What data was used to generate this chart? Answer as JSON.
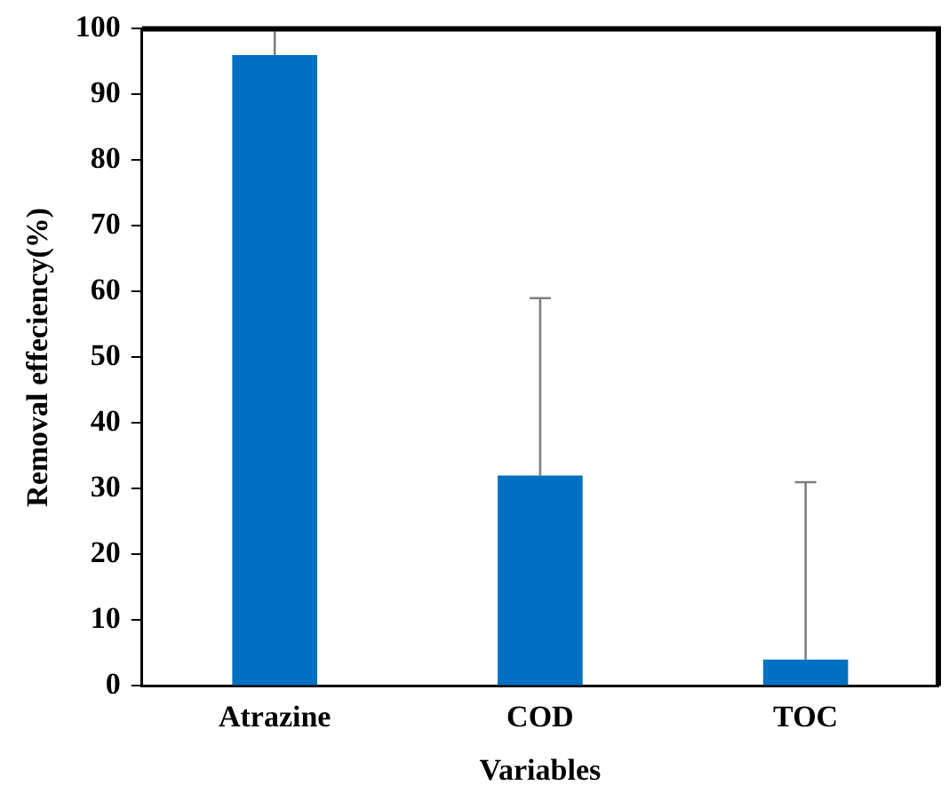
{
  "chart_data": {
    "type": "bar",
    "xlabel": "Variables",
    "ylabel": "Removal effeciency(%)",
    "categories": [
      "Atrazine",
      "COD",
      "TOC"
    ],
    "values": [
      96,
      32,
      4
    ],
    "color": "#0070c0",
    "errors": [
      [
        96,
        100
      ],
      [
        32,
        59
      ],
      [
        4,
        31
      ]
    ],
    "ylim": [
      0,
      100
    ],
    "yticks": [
      0,
      10,
      20,
      30,
      40,
      50,
      60,
      70,
      80,
      90,
      100
    ],
    "grid": false,
    "legend": false
  }
}
